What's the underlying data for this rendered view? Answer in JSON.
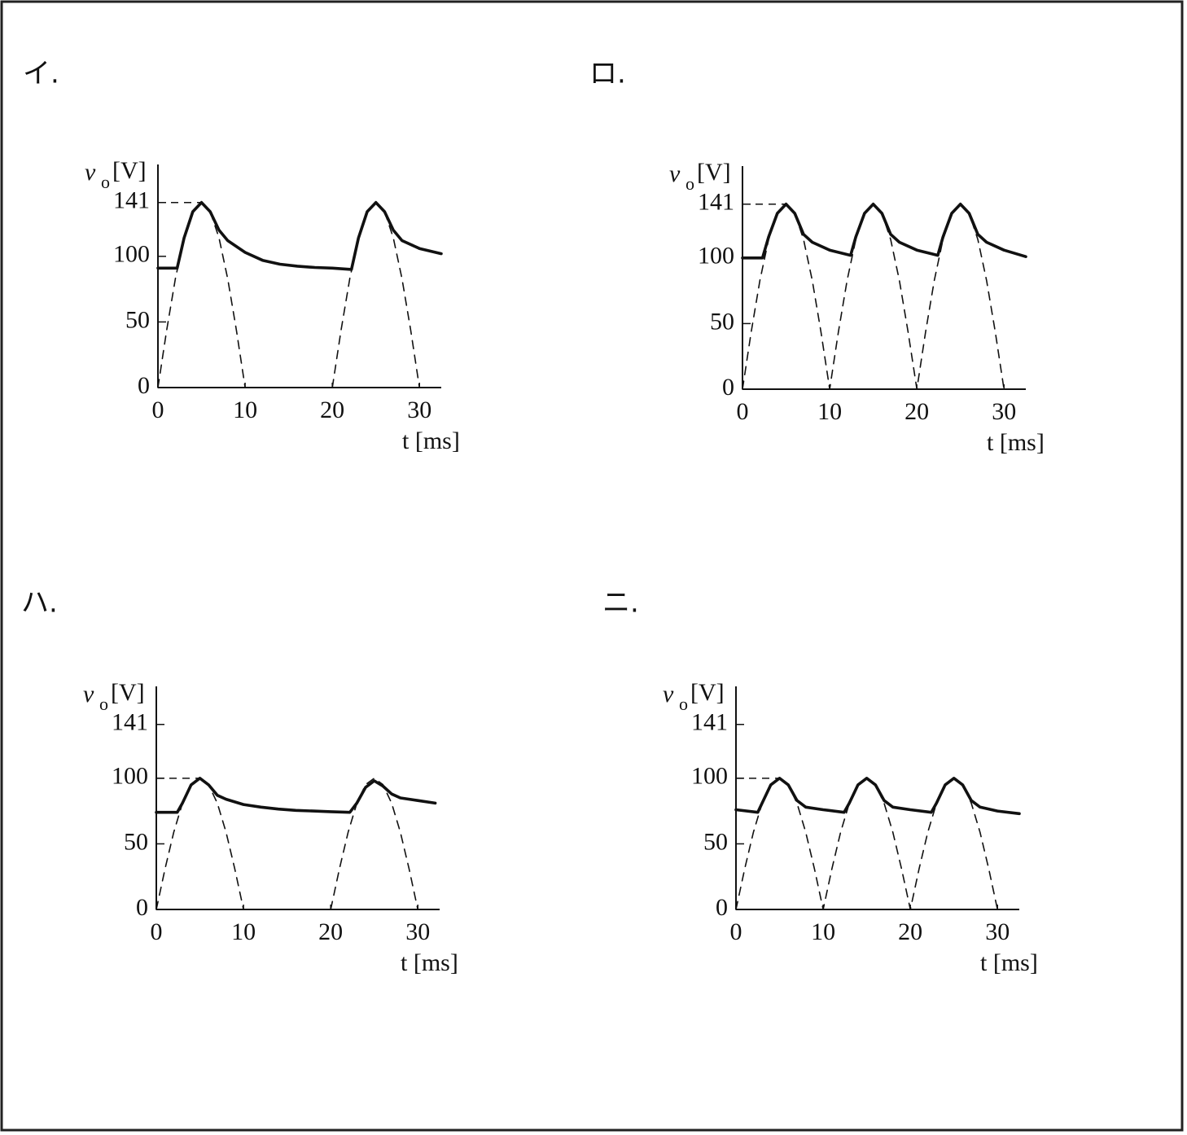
{
  "chart_data": [
    {
      "type": "line",
      "label": "イ.",
      "ylabel": "v",
      "ylabel_subscript": "o",
      "ylabel_unit": "[V]",
      "xlabel": "t [ms]",
      "xlim": [
        0,
        32.5
      ],
      "ylim": [
        0,
        170
      ],
      "xticks": [
        0,
        10,
        20,
        30
      ],
      "yticks": [
        0,
        50,
        100,
        141
      ],
      "hline": 141,
      "series": [
        {
          "color": "#111111",
          "dashed": false,
          "x": [
            0,
            2.2,
            3,
            4,
            5,
            6,
            7,
            8,
            10,
            12,
            14,
            16,
            18,
            20,
            22.2,
            23,
            24,
            25,
            26,
            27,
            28,
            30,
            32.5
          ],
          "values": [
            91,
            91,
            114,
            134,
            141,
            134,
            120,
            112,
            103,
            97,
            94,
            92.5,
            91.5,
            91,
            90,
            114,
            134,
            141,
            134,
            120,
            112,
            106,
            102
          ]
        },
        {
          "color": "#111111",
          "dashed": true,
          "x": [
            0,
            1,
            2,
            3,
            4,
            5,
            6,
            7,
            8,
            9,
            10,
            11,
            12,
            13,
            14,
            15,
            16,
            17,
            18,
            19,
            20,
            21,
            22,
            23,
            24,
            25,
            26,
            27,
            28,
            29,
            30
          ],
          "values": [
            0,
            43.6,
            82.9,
            114.1,
            134.1,
            141,
            134.1,
            114.1,
            82.9,
            43.6,
            0,
            null,
            null,
            null,
            null,
            null,
            null,
            null,
            null,
            null,
            0,
            43.6,
            82.9,
            114.1,
            134.1,
            141,
            134.1,
            114.1,
            82.9,
            43.6,
            0
          ]
        }
      ]
    },
    {
      "type": "line",
      "label": "ロ.",
      "ylabel": "v",
      "ylabel_subscript": "o",
      "ylabel_unit": "[V]",
      "xlabel": "t [ms]",
      "xlim": [
        0,
        32.5
      ],
      "ylim": [
        0,
        170
      ],
      "xticks": [
        0,
        10,
        20,
        30
      ],
      "yticks": [
        0,
        50,
        100,
        141
      ],
      "hline": 141,
      "series": [
        {
          "color": "#111111",
          "dashed": false,
          "x": [
            0,
            2.3,
            3,
            4,
            5,
            6,
            7,
            8,
            10,
            12.4,
            13,
            14,
            15,
            16,
            17,
            18,
            20,
            22.4,
            23,
            24,
            25,
            26,
            27,
            28,
            30,
            32.5
          ],
          "values": [
            100,
            100,
            116,
            134,
            141,
            134,
            118,
            112,
            106,
            102,
            116,
            134,
            141,
            134,
            118,
            112,
            106,
            102,
            116,
            134,
            141,
            134,
            118,
            112,
            106,
            101
          ]
        },
        {
          "color": "#111111",
          "dashed": true,
          "x": [
            0,
            1,
            2,
            3,
            4,
            5,
            6,
            7,
            8,
            9,
            10,
            11,
            12,
            13,
            14,
            15,
            16,
            17,
            18,
            19,
            20,
            21,
            22,
            23,
            24,
            25,
            26,
            27,
            28,
            29,
            30
          ],
          "values": [
            0,
            43.6,
            82.9,
            114.1,
            134.1,
            141,
            134.1,
            114.1,
            82.9,
            43.6,
            0,
            43.6,
            82.9,
            114.1,
            134.1,
            141,
            134.1,
            114.1,
            82.9,
            43.6,
            0,
            43.6,
            82.9,
            114.1,
            134.1,
            141,
            134.1,
            114.1,
            82.9,
            43.6,
            0
          ]
        }
      ]
    },
    {
      "type": "line",
      "label": "ハ.",
      "ylabel": "v",
      "ylabel_subscript": "o",
      "ylabel_unit": "[V]",
      "xlabel": "t [ms]",
      "xlim": [
        0,
        32.5
      ],
      "ylim": [
        0,
        170
      ],
      "xticks": [
        0,
        10,
        20,
        30
      ],
      "yticks": [
        0,
        50,
        100,
        141
      ],
      "hline": 100,
      "series": [
        {
          "color": "#111111",
          "dashed": false,
          "x": [
            0,
            2.4,
            3,
            4,
            5,
            6,
            7,
            8,
            10,
            12,
            14,
            16,
            18,
            20,
            22.2,
            23,
            24,
            25,
            26,
            27,
            28,
            30,
            32
          ],
          "values": [
            74,
            74,
            81,
            95,
            100,
            95,
            87,
            84,
            80,
            78,
            76.5,
            75.5,
            75,
            74.5,
            74,
            81,
            93,
            98,
            94,
            88,
            85,
            83,
            81
          ]
        },
        {
          "color": "#111111",
          "dashed": true,
          "x": [
            0,
            1,
            2,
            3,
            4,
            5,
            6,
            7,
            8,
            9,
            10,
            11,
            12,
            13,
            14,
            15,
            16,
            17,
            18,
            19,
            20,
            21,
            22,
            23,
            24,
            25,
            26,
            27,
            28,
            29,
            30
          ],
          "values": [
            0,
            30.9,
            58.8,
            80.9,
            95.1,
            100,
            95.1,
            80.9,
            58.8,
            30.9,
            0,
            null,
            null,
            null,
            null,
            null,
            null,
            null,
            null,
            null,
            0,
            30.9,
            58.8,
            80.9,
            95.1,
            100,
            95.1,
            80.9,
            58.8,
            30.9,
            0
          ]
        }
      ]
    },
    {
      "type": "line",
      "label": "ニ.",
      "ylabel": "v",
      "ylabel_subscript": "o",
      "ylabel_unit": "[V]",
      "xlabel": "t [ms]",
      "xlim": [
        0,
        32.5
      ],
      "ylim": [
        0,
        170
      ],
      "xticks": [
        0,
        10,
        20,
        30
      ],
      "yticks": [
        0,
        50,
        100,
        141
      ],
      "hline": 100,
      "series": [
        {
          "color": "#111111",
          "dashed": false,
          "x": [
            0,
            2.5,
            3,
            4,
            5,
            6,
            7,
            8,
            10,
            12.4,
            13,
            14,
            15,
            16,
            17,
            18,
            20,
            22.4,
            23,
            24,
            25,
            26,
            27,
            28,
            30,
            32.5
          ],
          "values": [
            76,
            74,
            81,
            95,
            100,
            95,
            83,
            78,
            76,
            74,
            81,
            95,
            100,
            95,
            83,
            78,
            76,
            74,
            81,
            95,
            100,
            95,
            83,
            78,
            75,
            73
          ]
        },
        {
          "color": "#111111",
          "dashed": true,
          "x": [
            0,
            1,
            2,
            3,
            4,
            5,
            6,
            7,
            8,
            9,
            10,
            11,
            12,
            13,
            14,
            15,
            16,
            17,
            18,
            19,
            20,
            21,
            22,
            23,
            24,
            25,
            26,
            27,
            28,
            29,
            30
          ],
          "values": [
            0,
            30.9,
            58.8,
            80.9,
            95.1,
            100,
            95.1,
            80.9,
            58.8,
            30.9,
            0,
            30.9,
            58.8,
            80.9,
            95.1,
            100,
            95.1,
            80.9,
            58.8,
            30.9,
            0,
            30.9,
            58.8,
            80.9,
            95.1,
            100,
            95.1,
            80.9,
            58.8,
            30.9,
            0
          ]
        }
      ]
    }
  ]
}
